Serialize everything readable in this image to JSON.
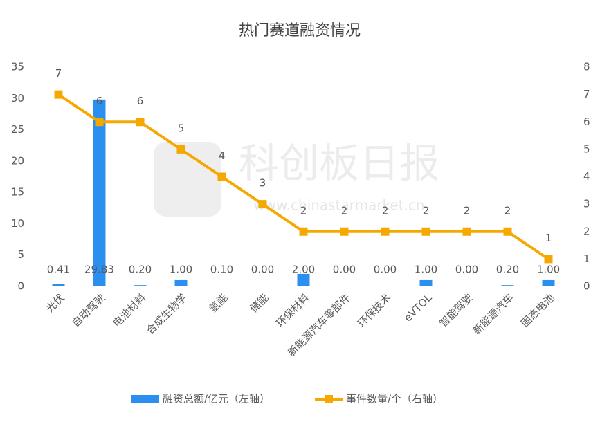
{
  "chart_data": {
    "type": "combo",
    "title": "热门赛道融资情况",
    "categories": [
      "光伏",
      "自动驾驶",
      "电池材料",
      "合成生物学",
      "氢能",
      "储能",
      "环保材料",
      "新能源汽车零部件",
      "环保技术",
      "eVTOL",
      "智能驾驶",
      "新能源汽车",
      "固态电池"
    ],
    "series": [
      {
        "name": "融资总额/亿元（左轴）",
        "type": "bar",
        "axis": "y",
        "color": "#2b8ff0",
        "values": [
          0.41,
          29.83,
          0.2,
          1,
          0.1,
          0,
          2,
          0,
          0,
          1,
          0,
          0.2,
          1
        ],
        "value_labels": [
          "0.41",
          "29.83",
          "0.20",
          "1.00",
          "0.10",
          "0.00",
          "2.00",
          "0.00",
          "0.00",
          "1.00",
          "0.00",
          "0.20",
          "1.00"
        ]
      },
      {
        "name": "事件数量/个（右轴）",
        "type": "line",
        "axis": "y2",
        "color": "#f5a800",
        "values": [
          7,
          6,
          6,
          5,
          4,
          3,
          2,
          2,
          2,
          2,
          2,
          2,
          1
        ]
      }
    ],
    "ylim": [
      0,
      35
    ],
    "yticks": [
      0,
      5,
      10,
      15,
      20,
      25,
      30,
      35
    ],
    "y2lim": [
      0,
      8
    ],
    "y2ticks": [
      0,
      1,
      2,
      3,
      4,
      5,
      6,
      7,
      8
    ],
    "grid": false,
    "legend": "bottom",
    "watermark": {
      "title": "科创板日报",
      "url": "www.chinastarmarket.cn"
    }
  }
}
